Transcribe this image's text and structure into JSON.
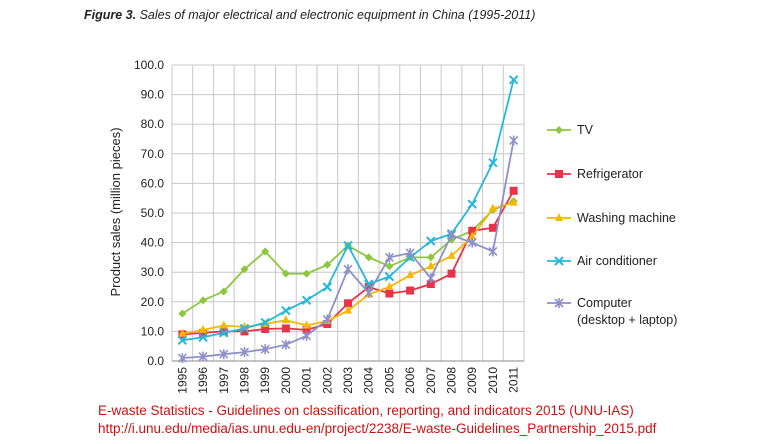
{
  "figure": {
    "label": "Figure 3.",
    "caption": "Sales of major electrical and electronic equipment in China (1995-2011)"
  },
  "chart_data": {
    "type": "line",
    "title": "Figure 3. Sales of major electrical and electronic equipment in China (1995-2011)",
    "xlabel": "",
    "ylabel": "Product sales (million pieces)",
    "ylim": [
      0,
      100
    ],
    "yticks": [
      "0.0",
      "10.0",
      "20.0",
      "30.0",
      "40.0",
      "50.0",
      "60.0",
      "70.0",
      "80.0",
      "90.0",
      "100.0"
    ],
    "grid": true,
    "legend_position": "right",
    "categories": [
      "1995",
      "1996",
      "1997",
      "1998",
      "1999",
      "2000",
      "2001",
      "2002",
      "2003",
      "2004",
      "2005",
      "2006",
      "2007",
      "2008",
      "2009",
      "2010",
      "2011"
    ],
    "series": [
      {
        "name": "TV",
        "color": "#8dc63f",
        "marker": "diamond",
        "values": [
          16,
          20.5,
          23.5,
          31,
          37,
          29.5,
          29.5,
          32.5,
          39,
          35,
          32,
          35,
          35,
          41,
          44,
          51,
          54
        ]
      },
      {
        "name": "Refrigerator",
        "color": "#e8334a",
        "marker": "square",
        "values": [
          9,
          9.5,
          10,
          10,
          10.8,
          11,
          10.5,
          12.5,
          19.5,
          25,
          22.8,
          23.8,
          26,
          29.5,
          44,
          45,
          57.5
        ]
      },
      {
        "name": "Washing machine",
        "color": "#f5b800",
        "marker": "triangle",
        "values": [
          9.2,
          10.5,
          12,
          11.5,
          12.5,
          13.8,
          12,
          13.5,
          17,
          22.5,
          25,
          29,
          32,
          35.5,
          42,
          51.5,
          53.5
        ]
      },
      {
        "name": "Air conditioner",
        "color": "#27b7d8",
        "marker": "x",
        "values": [
          7,
          8,
          9.5,
          11,
          13,
          17,
          20.5,
          25,
          39,
          26,
          28.5,
          35,
          40.5,
          43,
          53,
          67,
          95
        ]
      },
      {
        "name": "Computer\n(desktop + laptop)",
        "color": "#8e91c9",
        "marker": "star",
        "values": [
          1,
          1.5,
          2.3,
          3,
          4,
          5.5,
          8.5,
          14,
          31,
          23,
          35,
          36.5,
          28,
          42.5,
          40,
          37,
          74.5
        ]
      }
    ]
  },
  "source": {
    "line1": "E-waste Statistics - Guidelines on classification, reporting, and indicators 2015 (UNU-IAS)",
    "line2": "http://i.unu.edu/media/ias.unu.edu-en/project/2238/E-waste-Guidelines_Partnership_2015.pdf"
  }
}
